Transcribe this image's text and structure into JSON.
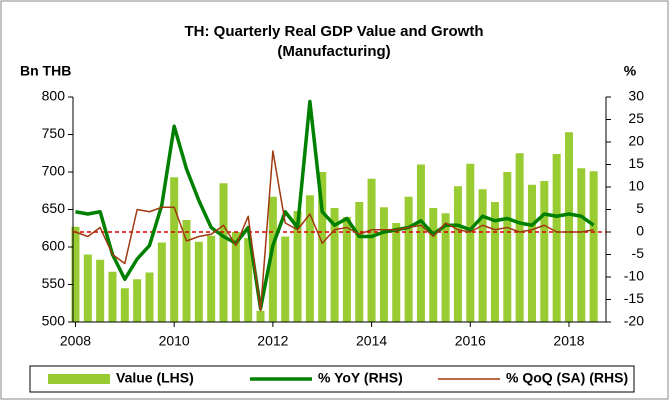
{
  "chart_data": {
    "type": "bar_line",
    "title": "TH: Quarterly Real GDP Value and Growth",
    "subtitle": "(Manufacturing)",
    "y_label": "Bn THB",
    "y2_label": "%",
    "x": [
      2008,
      2008.25,
      2008.5,
      2008.75,
      2009,
      2009.25,
      2009.5,
      2009.75,
      2010,
      2010.25,
      2010.5,
      2010.75,
      2011,
      2011.25,
      2011.5,
      2011.75,
      2012,
      2012.25,
      2012.5,
      2012.75,
      2013,
      2013.25,
      2013.5,
      2013.75,
      2014,
      2014.25,
      2014.5,
      2014.75,
      2015,
      2015.25,
      2015.5,
      2015.75,
      2016,
      2016.25,
      2016.5,
      2016.75,
      2017,
      2017.25,
      2017.5,
      2017.75,
      2018,
      2018.25,
      2018.5
    ],
    "series": [
      {
        "name": "Value (LHS)",
        "kind": "bar",
        "color": "#99cc33",
        "axis": "y",
        "values": [
          627,
          590,
          583,
          567,
          545,
          557,
          566,
          606,
          693,
          636,
          607,
          615,
          685,
          620,
          612,
          515,
          667,
          614,
          648,
          669,
          700,
          652,
          640,
          660,
          691,
          653,
          632,
          667,
          710,
          652,
          645,
          681,
          711,
          677,
          660,
          700,
          725,
          683,
          688,
          724,
          753,
          705,
          701
        ]
      },
      {
        "name": "% YoY (RHS)",
        "kind": "line",
        "color": "#008000",
        "axis": "y2",
        "values": [
          4.5,
          4,
          4.5,
          -5,
          -10.5,
          -6,
          -3,
          6,
          23.5,
          14,
          7,
          1,
          -1,
          -2.5,
          1,
          -17,
          -3,
          4.5,
          1,
          29,
          4.5,
          1.5,
          3,
          -1,
          -1,
          0,
          0.5,
          1,
          2.5,
          -0.5,
          1.5,
          1.5,
          0.5,
          3.5,
          2.5,
          3,
          2,
          1.5,
          4,
          3.5,
          4,
          3.5,
          1.5
        ]
      },
      {
        "name": "% QoQ (SA) (RHS)",
        "kind": "line",
        "color": "#a0390f",
        "axis": "y2",
        "values": [
          0,
          -1,
          1,
          -5,
          -7,
          5,
          4.5,
          5.5,
          5.5,
          -2,
          -1,
          -0.5,
          1.5,
          -3,
          3.5,
          -17.5,
          18,
          2,
          0.5,
          4,
          -2.5,
          0.5,
          1,
          -0.5,
          0.5,
          0.5,
          0.5,
          1,
          1.5,
          -1,
          2,
          0.5,
          0,
          1.5,
          0.5,
          1,
          0,
          0.5,
          1.5,
          0,
          0,
          0,
          0.5
        ]
      }
    ],
    "xlim": [
      2007.95,
      2018.75
    ],
    "xticks": [
      2008,
      2010,
      2012,
      2014,
      2016,
      2018
    ],
    "ylim": [
      500,
      800
    ],
    "yticks": [
      500,
      550,
      600,
      650,
      700,
      750,
      800
    ],
    "y2lim": [
      -20,
      30
    ],
    "y2ticks": [
      -20,
      -15,
      -10,
      -5,
      0,
      5,
      10,
      15,
      20,
      25,
      30
    ],
    "legend": "bottom"
  }
}
